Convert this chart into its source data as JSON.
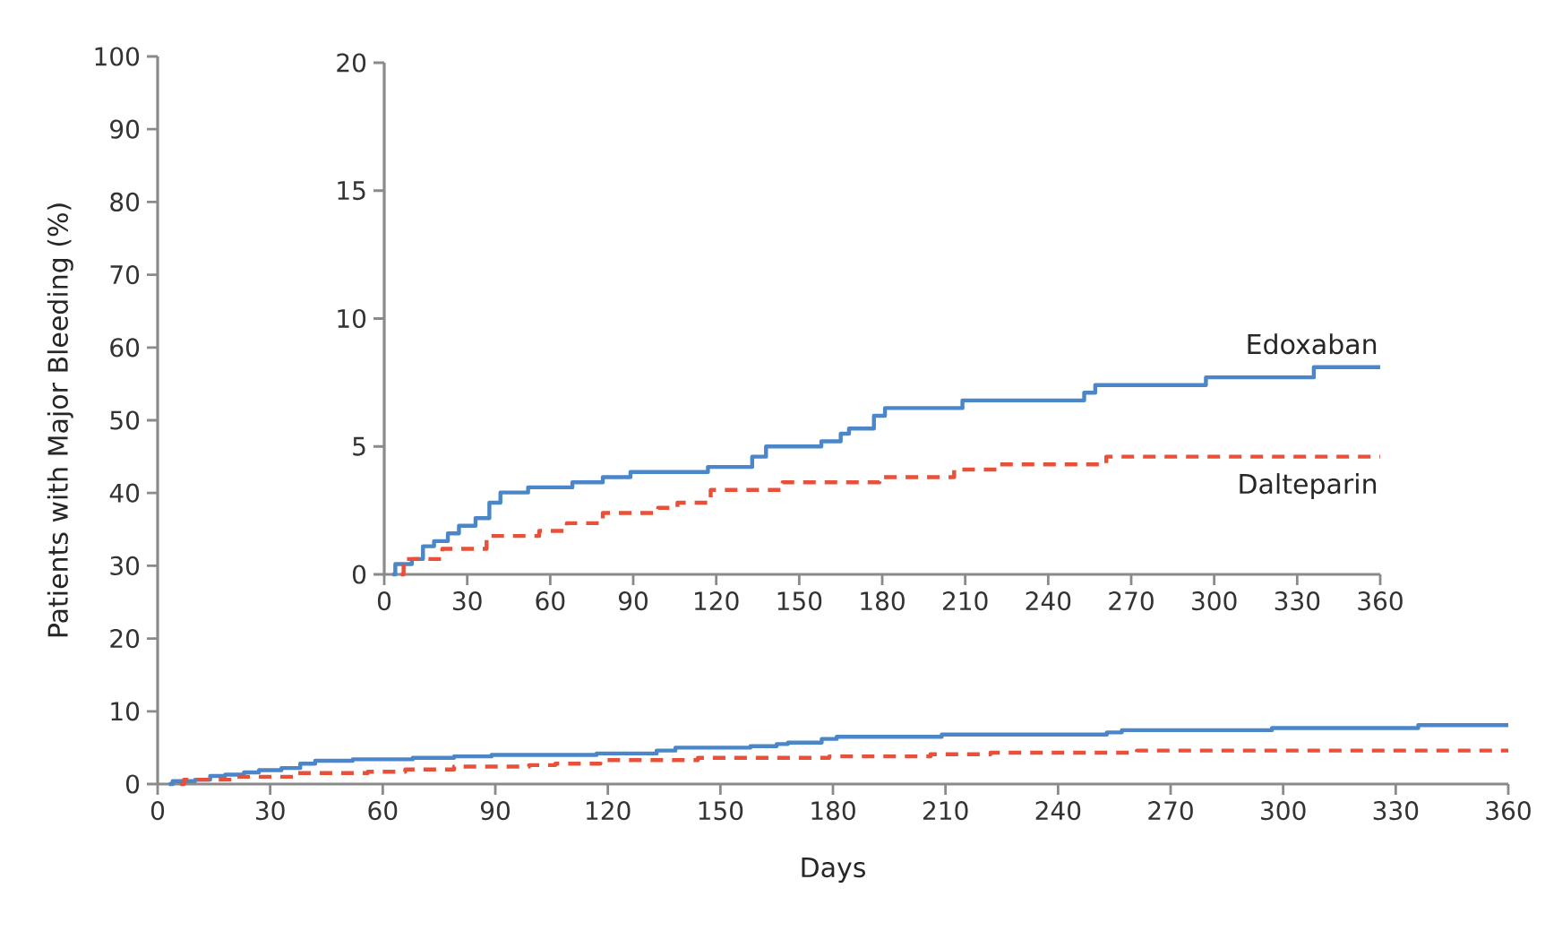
{
  "chart_data": [
    {
      "type": "step",
      "xlabel": "Days",
      "ylabel": "Patients with Major Bleeding (%)",
      "xlim": [
        0,
        360
      ],
      "ylim": [
        0,
        100
      ],
      "xticks": [
        0,
        30,
        60,
        90,
        120,
        150,
        180,
        210,
        240,
        270,
        300,
        330,
        360
      ],
      "yticks": [
        0,
        10,
        20,
        30,
        40,
        50,
        60,
        70,
        80,
        90,
        100
      ],
      "grid": false,
      "legend": false,
      "marker": "none",
      "series": [
        {
          "color": "#4a86c8",
          "line_style": "solid",
          "x": [
            3,
            4,
            10,
            14,
            18,
            23,
            27,
            33,
            38,
            42,
            52,
            68,
            79,
            89,
            117,
            133,
            138,
            158,
            165,
            168,
            177,
            181,
            209,
            253,
            257,
            297,
            336,
            360
          ],
          "values": [
            0,
            0.4,
            0.6,
            1.1,
            1.3,
            1.6,
            1.9,
            2.2,
            2.8,
            3.2,
            3.4,
            3.6,
            3.8,
            4.0,
            4.2,
            4.6,
            5.0,
            5.2,
            5.5,
            5.7,
            6.2,
            6.5,
            6.8,
            7.1,
            7.4,
            7.7,
            8.1,
            8.1
          ]
        },
        {
          "color": "#e8503a",
          "line_style": "dashed",
          "x": [
            6,
            7,
            21,
            37,
            56,
            66,
            79,
            99,
            106,
            118,
            144,
            179,
            206,
            222,
            261,
            360
          ],
          "values": [
            0,
            0.6,
            1.0,
            1.5,
            1.7,
            2.0,
            2.4,
            2.6,
            2.8,
            3.3,
            3.6,
            3.8,
            4.1,
            4.3,
            4.6,
            4.6
          ]
        }
      ]
    },
    {
      "type": "step",
      "xlim": [
        0,
        360
      ],
      "ylim": [
        0,
        20
      ],
      "xticks": [
        0,
        30,
        60,
        90,
        120,
        150,
        180,
        210,
        240,
        270,
        300,
        330,
        360
      ],
      "yticks": [
        0,
        5,
        10,
        15,
        20
      ],
      "grid": false,
      "legend": false,
      "marker": "none",
      "series": [
        {
          "name": "Edoxaban",
          "color": "#4a86c8",
          "line_style": "solid",
          "x": [
            3,
            4,
            10,
            14,
            18,
            23,
            27,
            33,
            38,
            42,
            52,
            68,
            79,
            89,
            117,
            133,
            138,
            158,
            165,
            168,
            177,
            181,
            209,
            253,
            257,
            297,
            336,
            360
          ],
          "values": [
            0,
            0.4,
            0.6,
            1.1,
            1.3,
            1.6,
            1.9,
            2.2,
            2.8,
            3.2,
            3.4,
            3.6,
            3.8,
            4.0,
            4.2,
            4.6,
            5.0,
            5.2,
            5.5,
            5.7,
            6.2,
            6.5,
            6.8,
            7.1,
            7.4,
            7.7,
            8.1,
            8.1
          ]
        },
        {
          "name": "Dalteparin",
          "color": "#e8503a",
          "line_style": "dashed",
          "x": [
            6,
            7,
            21,
            37,
            56,
            66,
            79,
            99,
            106,
            118,
            144,
            179,
            206,
            222,
            261,
            360
          ],
          "values": [
            0,
            0.6,
            1.0,
            1.5,
            1.7,
            2.0,
            2.4,
            2.6,
            2.8,
            3.3,
            3.6,
            3.8,
            4.1,
            4.3,
            4.6,
            4.6
          ]
        }
      ]
    }
  ]
}
